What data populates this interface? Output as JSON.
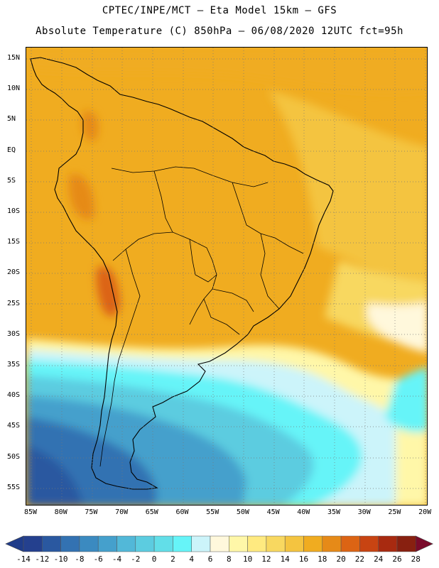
{
  "header": {
    "line1": "CPTEC/INPE/MCT –  Eta Model 15km – GFS",
    "line2": "Absolute Temperature (C) 850hPa – 06/08/2020 12UTC fct=95h"
  },
  "map": {
    "lat_labels": [
      "15N",
      "10N",
      "5N",
      "EQ",
      "5S",
      "10S",
      "15S",
      "20S",
      "25S",
      "30S",
      "35S",
      "40S",
      "45S",
      "50S",
      "55S"
    ],
    "lon_labels": [
      "85W",
      "80W",
      "75W",
      "70W",
      "65W",
      "60W",
      "55W",
      "50W",
      "45W",
      "40W",
      "35W",
      "30W",
      "25W",
      "20W"
    ]
  },
  "colorbar": {
    "labels": [
      "-14",
      "-12",
      "-10",
      "-8",
      "-6",
      "-4",
      "-2",
      "0",
      "2",
      "4",
      "6",
      "8",
      "10",
      "12",
      "14",
      "16",
      "18",
      "20",
      "22",
      "24",
      "26",
      "28"
    ],
    "colors": [
      "#24408e",
      "#2a58a0",
      "#3372b2",
      "#3b8ac0",
      "#45a0cc",
      "#52b8d8",
      "#5ccce0",
      "#62dee8",
      "#66f4f8",
      "#ccf4fa",
      "#fff8dc",
      "#fff7a8",
      "#ffea80",
      "#f8d860",
      "#f4c440",
      "#f0ac20",
      "#e68a18",
      "#dc6414",
      "#c84412",
      "#a82a10",
      "#882010"
    ],
    "under_color": "#1f3c8a",
    "over_color": "#7a0a2a"
  }
}
